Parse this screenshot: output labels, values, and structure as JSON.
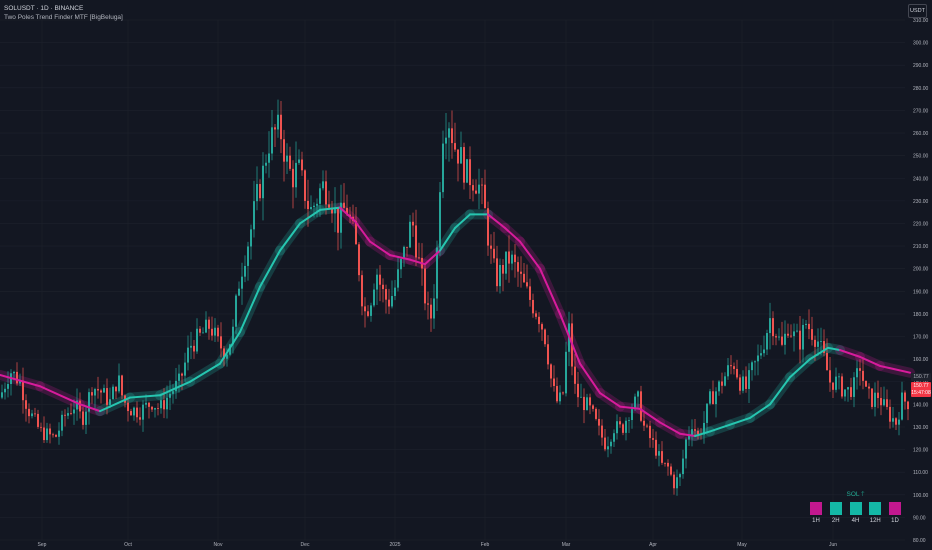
{
  "header": {
    "title": "SOLUSDT · 1D · BINANCE",
    "subtitle": "Two Poles Trend Finder MTF [BigBeluga]"
  },
  "unit_badge": "USDT",
  "price_tags": [
    {
      "label": "150.77",
      "bg": "#1e222d",
      "fg": "#b2b5be",
      "value": 152
    },
    {
      "label": "150.77",
      "bg": "#f23645",
      "fg": "#ffffff",
      "value": 148
    },
    {
      "label": "15:47:08",
      "bg": "#f23645",
      "fg": "#ffffff",
      "value": 145
    }
  ],
  "colors": {
    "background": "#131722",
    "bull_candle": "#26a69a",
    "bear_candle": "#ef5350",
    "trend_up": "#26c6b0",
    "trend_down": "#d81b9c",
    "grid": "#1e222d",
    "axis_text": "#b2b5be"
  },
  "mtf_panel": {
    "header": "SOL",
    "header_icon": "arrow-up-icon",
    "cells": [
      {
        "label": "1H",
        "color": "#c2188f"
      },
      {
        "label": "2H",
        "color": "#14b8a6"
      },
      {
        "label": "4H",
        "color": "#14b8a6"
      },
      {
        "label": "12H",
        "color": "#14b8a6"
      },
      {
        "label": "1D",
        "color": "#c2188f"
      }
    ]
  },
  "chart_data": {
    "type": "candlestick",
    "symbol": "SOLUSDT",
    "timeframe": "1D",
    "exchange": "BINANCE",
    "y_axis": {
      "min": 80,
      "max": 310,
      "ticks": [
        310,
        300,
        290,
        280,
        270,
        260,
        250,
        240,
        230,
        220,
        210,
        200,
        190,
        180,
        170,
        160,
        150,
        140,
        130,
        120,
        110,
        100,
        90,
        80
      ]
    },
    "y_tick_labels": [
      "310.00",
      "300.00",
      "290.00",
      "280.00",
      "270.00",
      "260.00",
      "250.00",
      "240.00",
      "230.00",
      "220.00",
      "210.00",
      "200.00",
      "190.00",
      "180.00",
      "170.00",
      "160.00",
      "150.00",
      "140.00",
      "130.00",
      "120.00",
      "110.00",
      "100.00",
      "90.00",
      "80.00"
    ],
    "x_axis": {
      "labels": [
        "Sep",
        "Oct",
        "Nov",
        "Dec",
        "2025",
        "Feb",
        "Mar",
        "Apr",
        "May",
        "Jun"
      ]
    },
    "price_path": [
      [
        0,
        143
      ],
      [
        10,
        155
      ],
      [
        20,
        150
      ],
      [
        28,
        138
      ],
      [
        40,
        128
      ],
      [
        55,
        125
      ],
      [
        65,
        135
      ],
      [
        75,
        140
      ],
      [
        82,
        133
      ],
      [
        92,
        148
      ],
      [
        100,
        146
      ],
      [
        110,
        141
      ],
      [
        118,
        152
      ],
      [
        123,
        142
      ],
      [
        130,
        138
      ],
      [
        140,
        137
      ],
      [
        152,
        141
      ],
      [
        160,
        138
      ],
      [
        170,
        145
      ],
      [
        180,
        150
      ],
      [
        190,
        166
      ],
      [
        200,
        170
      ],
      [
        210,
        175
      ],
      [
        218,
        167
      ],
      [
        226,
        163
      ],
      [
        233,
        172
      ],
      [
        238,
        192
      ],
      [
        244,
        205
      ],
      [
        250,
        215
      ],
      [
        256,
        230
      ],
      [
        262,
        240
      ],
      [
        268,
        255
      ],
      [
        274,
        260
      ],
      [
        280,
        262
      ],
      [
        286,
        248
      ],
      [
        292,
        240
      ],
      [
        298,
        245
      ],
      [
        304,
        235
      ],
      [
        310,
        225
      ],
      [
        316,
        230
      ],
      [
        322,
        237
      ],
      [
        330,
        233
      ],
      [
        338,
        220
      ],
      [
        346,
        228
      ],
      [
        352,
        218
      ],
      [
        358,
        204
      ],
      [
        364,
        180
      ],
      [
        370,
        185
      ],
      [
        376,
        200
      ],
      [
        382,
        190
      ],
      [
        388,
        185
      ],
      [
        394,
        190
      ],
      [
        400,
        200
      ],
      [
        406,
        210
      ],
      [
        412,
        222
      ],
      [
        418,
        205
      ],
      [
        424,
        190
      ],
      [
        430,
        175
      ],
      [
        436,
        198
      ],
      [
        442,
        260
      ],
      [
        448,
        268
      ],
      [
        454,
        255
      ],
      [
        460,
        250
      ],
      [
        466,
        242
      ],
      [
        472,
        240
      ],
      [
        478,
        238
      ],
      [
        484,
        228
      ],
      [
        490,
        208
      ],
      [
        496,
        195
      ],
      [
        502,
        200
      ],
      [
        510,
        205
      ],
      [
        518,
        198
      ],
      [
        526,
        190
      ],
      [
        534,
        183
      ],
      [
        540,
        178
      ],
      [
        546,
        168
      ],
      [
        552,
        148
      ],
      [
        558,
        140
      ],
      [
        564,
        146
      ],
      [
        568,
        178
      ],
      [
        574,
        148
      ],
      [
        580,
        142
      ],
      [
        586,
        140
      ],
      [
        592,
        136
      ],
      [
        598,
        129
      ],
      [
        606,
        122
      ],
      [
        614,
        130
      ],
      [
        622,
        129
      ],
      [
        630,
        138
      ],
      [
        638,
        142
      ],
      [
        644,
        130
      ],
      [
        650,
        125
      ],
      [
        656,
        120
      ],
      [
        662,
        113
      ],
      [
        668,
        112
      ],
      [
        674,
        105
      ],
      [
        680,
        108
      ],
      [
        686,
        124
      ],
      [
        692,
        132
      ],
      [
        698,
        126
      ],
      [
        704,
        132
      ],
      [
        710,
        142
      ],
      [
        716,
        146
      ],
      [
        722,
        150
      ],
      [
        728,
        155
      ],
      [
        734,
        158
      ],
      [
        740,
        150
      ],
      [
        746,
        147
      ],
      [
        752,
        155
      ],
      [
        758,
        160
      ],
      [
        764,
        168
      ],
      [
        770,
        178
      ],
      [
        776,
        172
      ],
      [
        782,
        165
      ],
      [
        788,
        175
      ],
      [
        794,
        170
      ],
      [
        800,
        168
      ],
      [
        806,
        176
      ],
      [
        812,
        172
      ],
      [
        818,
        168
      ],
      [
        824,
        160
      ],
      [
        830,
        150
      ],
      [
        836,
        150
      ],
      [
        842,
        147
      ],
      [
        848,
        146
      ],
      [
        854,
        148
      ],
      [
        860,
        157
      ],
      [
        866,
        145
      ],
      [
        872,
        142
      ],
      [
        878,
        144
      ],
      [
        884,
        139
      ],
      [
        890,
        135
      ],
      [
        896,
        132
      ],
      [
        902,
        142
      ],
      [
        908,
        141
      ]
    ],
    "trend_line": [
      [
        0,
        153,
        "down"
      ],
      [
        40,
        148,
        "down"
      ],
      [
        80,
        140,
        "down"
      ],
      [
        100,
        137,
        "up"
      ],
      [
        130,
        143,
        "up"
      ],
      [
        160,
        144,
        "up"
      ],
      [
        190,
        150,
        "up"
      ],
      [
        220,
        158,
        "up"
      ],
      [
        240,
        172,
        "up"
      ],
      [
        260,
        192,
        "up"
      ],
      [
        280,
        208,
        "up"
      ],
      [
        300,
        220,
        "up"
      ],
      [
        320,
        226,
        "up"
      ],
      [
        340,
        227,
        "down"
      ],
      [
        355,
        221,
        "down"
      ],
      [
        370,
        212,
        "down"
      ],
      [
        390,
        206,
        "down"
      ],
      [
        410,
        204,
        "down"
      ],
      [
        425,
        202,
        "down"
      ],
      [
        440,
        208,
        "up"
      ],
      [
        455,
        218,
        "up"
      ],
      [
        470,
        224,
        "up"
      ],
      [
        488,
        224,
        "down"
      ],
      [
        505,
        218,
        "down"
      ],
      [
        520,
        212,
        "down"
      ],
      [
        540,
        200,
        "down"
      ],
      [
        560,
        180,
        "down"
      ],
      [
        580,
        158,
        "down"
      ],
      [
        600,
        145,
        "down"
      ],
      [
        620,
        139,
        "down"
      ],
      [
        640,
        138,
        "down"
      ],
      [
        660,
        132,
        "down"
      ],
      [
        680,
        127,
        "down"
      ],
      [
        695,
        126,
        "up"
      ],
      [
        710,
        128,
        "up"
      ],
      [
        730,
        131,
        "up"
      ],
      [
        750,
        134,
        "up"
      ],
      [
        770,
        140,
        "up"
      ],
      [
        790,
        152,
        "up"
      ],
      [
        810,
        160,
        "up"
      ],
      [
        828,
        165,
        "up"
      ],
      [
        840,
        164,
        "down"
      ],
      [
        860,
        161,
        "down"
      ],
      [
        880,
        157,
        "down"
      ],
      [
        910,
        154,
        "down"
      ]
    ]
  }
}
